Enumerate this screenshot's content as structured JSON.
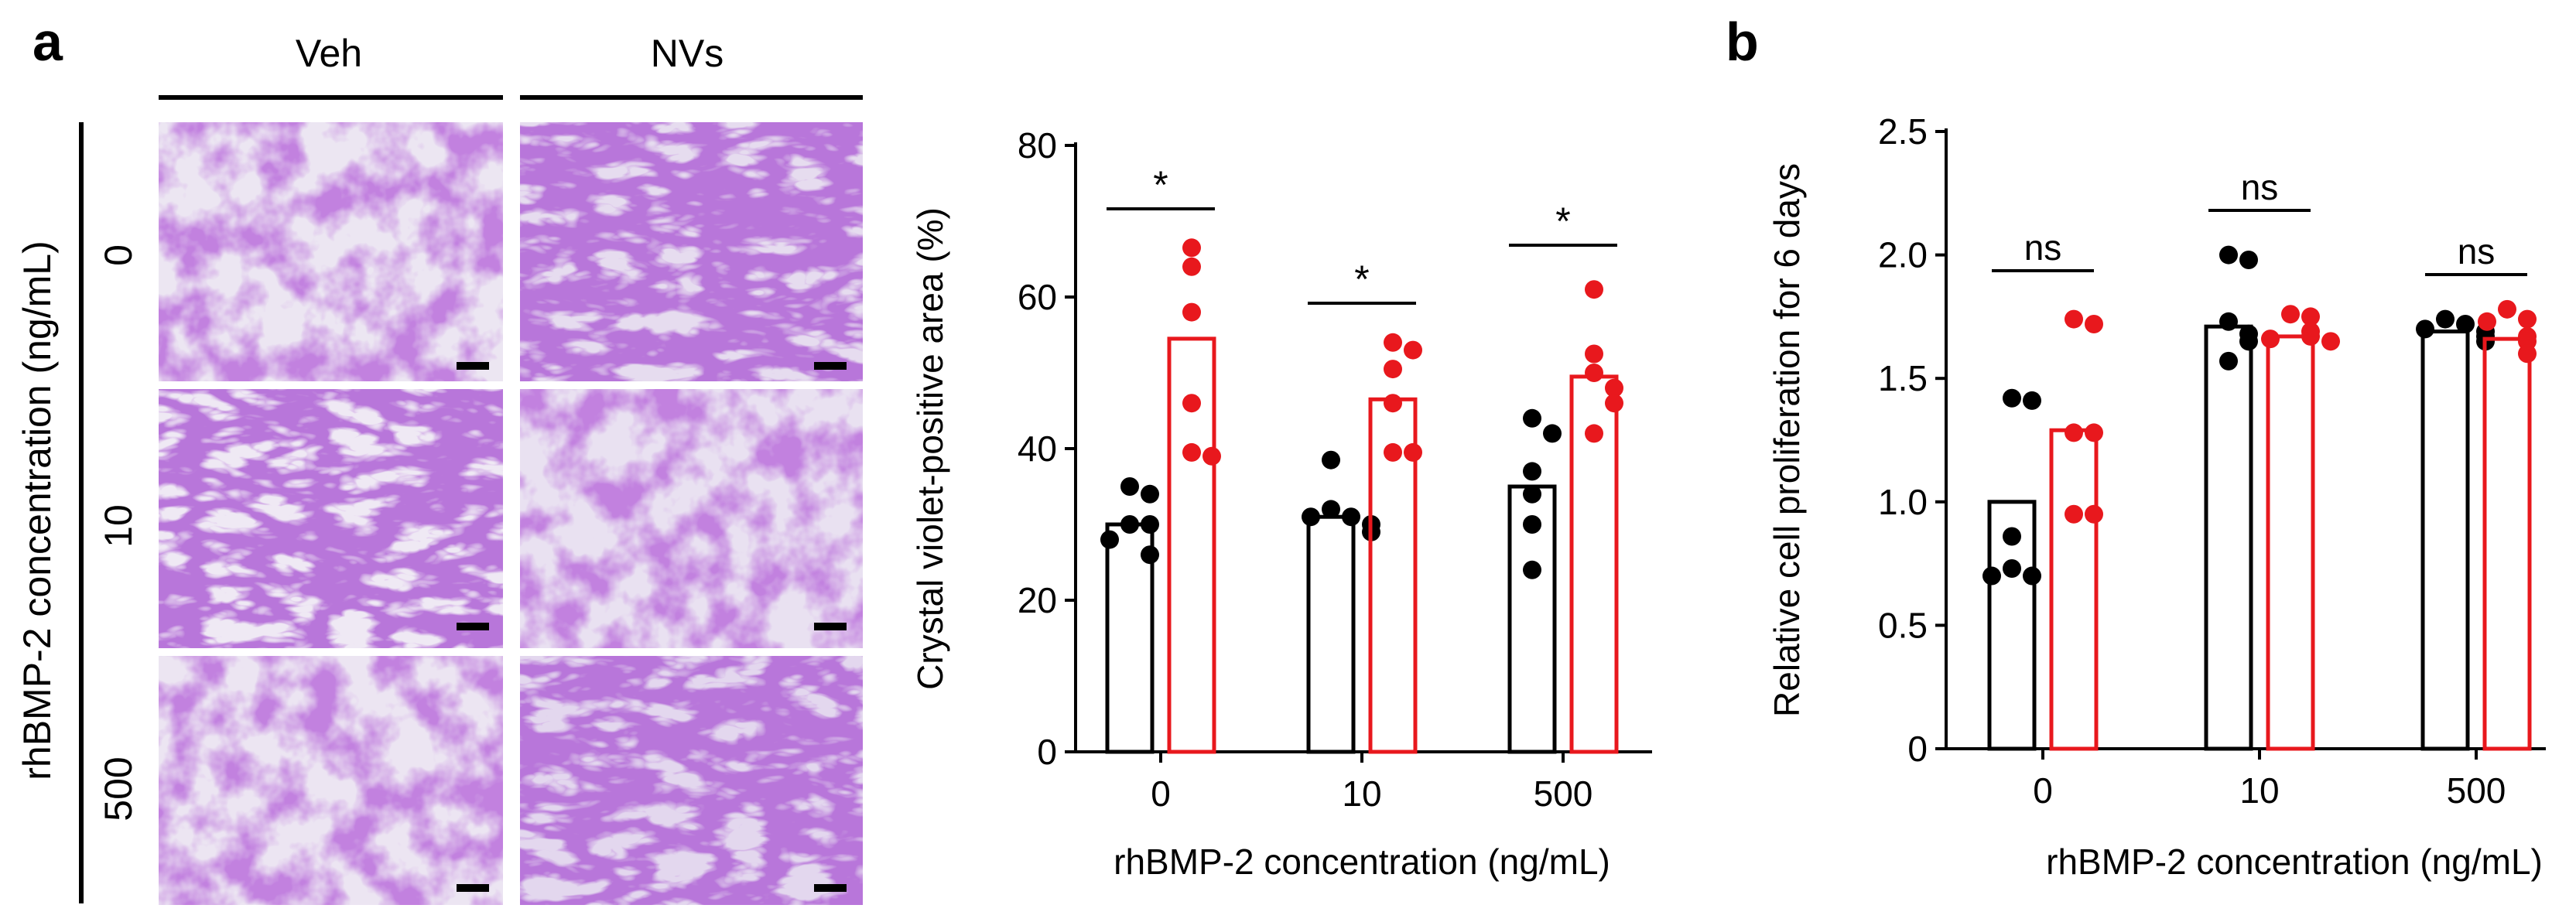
{
  "panel_labels": {
    "a": "a",
    "b": "b"
  },
  "micrographs": {
    "columns": [
      "Veh",
      "NVs"
    ],
    "row_axis_label": "rhBMP-2 concentration (ng/mL)",
    "rows": [
      "0",
      "10",
      "500"
    ],
    "scale_bar_note": "scale bars shown on each image (length not labeled)"
  },
  "colors": {
    "veh": "#000000",
    "nvs": "#e8181d",
    "stain": "#8a3fb8"
  },
  "chart_data": [
    {
      "type": "bar",
      "title": "",
      "xlabel": "rhBMP-2 concentration (ng/mL)",
      "ylabel": "Crystal violet-positive  area (%)",
      "categories": [
        "0",
        "10",
        "500"
      ],
      "ylim": [
        0,
        80
      ],
      "yticks": [
        "0",
        "20",
        "40",
        "60",
        "80"
      ],
      "series": [
        {
          "name": "Veh",
          "values": [
            30,
            31,
            35
          ],
          "points": [
            [
              35,
              34,
              30,
              30,
              28,
              26
            ],
            [
              38.5,
              32,
              31,
              31,
              30,
              29
            ],
            [
              44,
              42,
              37,
              34,
              30,
              24
            ]
          ]
        },
        {
          "name": "NVs",
          "values": [
            54.5,
            46.5,
            49.5
          ],
          "points": [
            [
              66.5,
              64,
              58,
              46,
              39.5,
              39
            ],
            [
              54,
              53,
              50.5,
              46,
              39.5,
              39.5
            ],
            [
              61,
              52.5,
              50,
              48,
              46,
              42
            ]
          ]
        }
      ],
      "annotations": [
        "*",
        "*",
        "*"
      ]
    },
    {
      "type": "bar",
      "title": "",
      "xlabel": "rhBMP-2 concentration (ng/mL)",
      "ylabel": "Relative  cell proliferation for 6 days",
      "categories": [
        "0",
        "10",
        "500"
      ],
      "ylim": [
        0,
        2.5
      ],
      "yticks": [
        "0",
        "0.5",
        "1.0",
        "1.5",
        "2.0",
        "2.5"
      ],
      "series": [
        {
          "name": "Veh",
          "values": [
            1.0,
            1.71,
            1.69
          ],
          "points": [
            [
              1.42,
              1.41,
              0.86,
              0.73,
              0.7,
              0.7
            ],
            [
              2.0,
              1.98,
              1.73,
              1.68,
              1.65,
              1.57
            ],
            [
              1.74,
              1.72,
              1.7,
              1.69,
              1.67,
              1.65
            ]
          ]
        },
        {
          "name": "NVs",
          "values": [
            1.29,
            1.67,
            1.66
          ],
          "points": [
            [
              1.74,
              1.72,
              1.28,
              1.28,
              0.95,
              0.95
            ],
            [
              1.76,
              1.75,
              1.69,
              1.67,
              1.66,
              1.65
            ],
            [
              1.78,
              1.74,
              1.73,
              1.67,
              1.65,
              1.6
            ]
          ]
        }
      ],
      "annotations": [
        "ns",
        "ns",
        "ns"
      ]
    }
  ]
}
